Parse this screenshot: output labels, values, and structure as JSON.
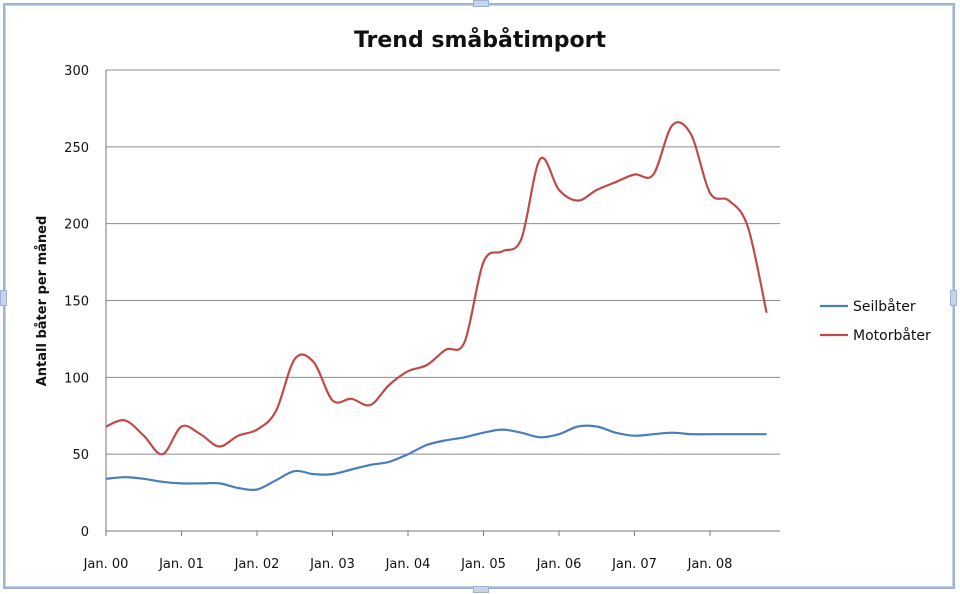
{
  "chart_data": {
    "type": "line",
    "title": "Trend småbåtimport",
    "xlabel": "",
    "ylabel": "Antall båter per måned",
    "ylim": [
      0,
      300
    ],
    "yticks": [
      0,
      50,
      100,
      150,
      200,
      250,
      300
    ],
    "xticks": [
      "Jan. 00",
      "Jan. 01",
      "Jan. 02",
      "Jan. 03",
      "Jan. 04",
      "Jan. 05",
      "Jan. 06",
      "Jan. 07",
      "Jan. 08"
    ],
    "x_start_year": 2000,
    "grid": true,
    "legend_position": "right",
    "x": [
      2000.0,
      2000.25,
      2000.5,
      2000.75,
      2001.0,
      2001.25,
      2001.5,
      2001.75,
      2002.0,
      2002.25,
      2002.5,
      2002.75,
      2003.0,
      2003.25,
      2003.5,
      2003.75,
      2004.0,
      2004.25,
      2004.5,
      2004.75,
      2005.0,
      2005.25,
      2005.5,
      2005.75,
      2006.0,
      2006.25,
      2006.5,
      2006.75,
      2007.0,
      2007.25,
      2007.5,
      2007.75,
      2008.0,
      2008.25,
      2008.5,
      2008.75
    ],
    "series": [
      {
        "name": "Seilbåter",
        "color": "#4a7ebb",
        "values": [
          34,
          35,
          34,
          32,
          31,
          31,
          31,
          28,
          27,
          33,
          39,
          37,
          37,
          40,
          43,
          45,
          50,
          56,
          59,
          61,
          64,
          66,
          64,
          61,
          63,
          68,
          68,
          64,
          62,
          63,
          64,
          63,
          63,
          63,
          63,
          63
        ]
      },
      {
        "name": "Motorbåter",
        "color": "#be4b48",
        "values": [
          68,
          72,
          62,
          50,
          68,
          63,
          55,
          62,
          66,
          78,
          112,
          110,
          85,
          86,
          82,
          95,
          104,
          108,
          118,
          123,
          175,
          182,
          190,
          242,
          222,
          215,
          222,
          227,
          232,
          232,
          264,
          258,
          220,
          215,
          198,
          142
        ]
      }
    ]
  }
}
